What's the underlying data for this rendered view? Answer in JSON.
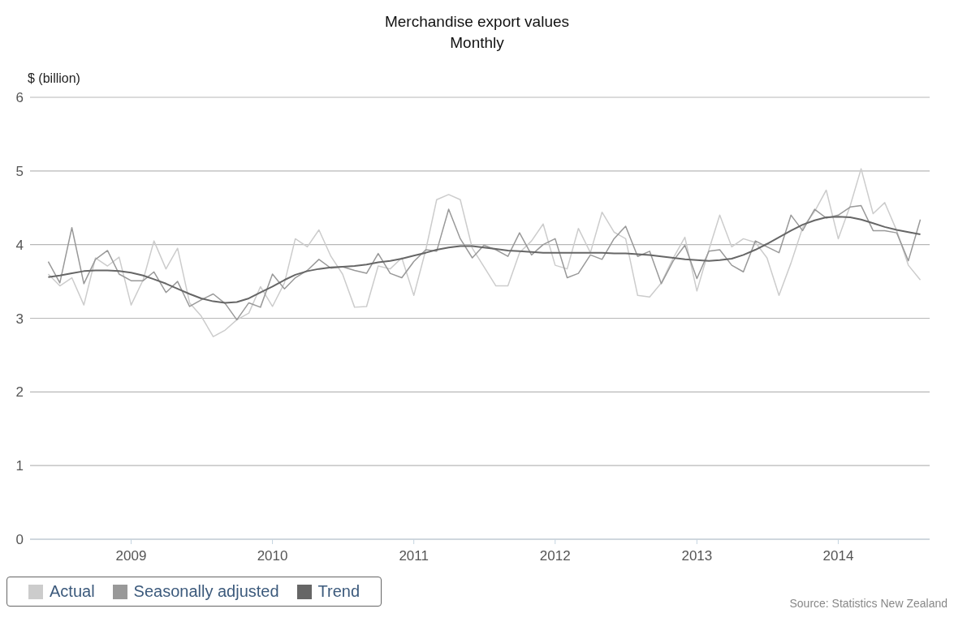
{
  "chart_data": {
    "type": "line",
    "title": "Merchandise export values",
    "subtitle": "Monthly",
    "ylabel": "$ (billion)",
    "x": [
      "2008-06",
      "2008-07",
      "2008-08",
      "2008-09",
      "2008-10",
      "2008-11",
      "2008-12",
      "2009-01",
      "2009-02",
      "2009-03",
      "2009-04",
      "2009-05",
      "2009-06",
      "2009-07",
      "2009-08",
      "2009-09",
      "2009-10",
      "2009-11",
      "2009-12",
      "2010-01",
      "2010-02",
      "2010-03",
      "2010-04",
      "2010-05",
      "2010-06",
      "2010-07",
      "2010-08",
      "2010-09",
      "2010-10",
      "2010-11",
      "2010-12",
      "2011-01",
      "2011-02",
      "2011-03",
      "2011-04",
      "2011-05",
      "2011-06",
      "2011-07",
      "2011-08",
      "2011-09",
      "2011-10",
      "2011-11",
      "2011-12",
      "2012-01",
      "2012-02",
      "2012-03",
      "2012-04",
      "2012-05",
      "2012-06",
      "2012-07",
      "2012-08",
      "2012-09",
      "2012-10",
      "2012-11",
      "2012-12",
      "2013-01",
      "2013-02",
      "2013-03",
      "2013-04",
      "2013-05",
      "2013-06",
      "2013-07",
      "2013-08",
      "2013-09",
      "2013-10",
      "2013-11",
      "2013-12",
      "2014-01",
      "2014-02",
      "2014-03",
      "2014-04",
      "2014-05",
      "2014-06",
      "2014-07",
      "2014-08"
    ],
    "series": [
      {
        "name": "Actual",
        "color": "#cccccc",
        "values": [
          3.6,
          3.44,
          3.55,
          3.18,
          3.82,
          3.71,
          3.83,
          3.18,
          3.52,
          4.05,
          3.67,
          3.95,
          3.21,
          3.03,
          2.75,
          2.84,
          2.98,
          3.07,
          3.43,
          3.16,
          3.48,
          4.08,
          3.97,
          4.2,
          3.84,
          3.6,
          3.15,
          3.16,
          3.71,
          3.67,
          3.82,
          3.31,
          3.93,
          4.61,
          4.68,
          4.61,
          3.95,
          3.7,
          3.44,
          3.44,
          3.89,
          4.05,
          4.28,
          3.72,
          3.67,
          4.22,
          3.89,
          4.44,
          4.17,
          4.08,
          3.31,
          3.29,
          3.48,
          3.82,
          4.1,
          3.37,
          3.93,
          4.4,
          3.97,
          4.08,
          4.03,
          3.82,
          3.31,
          3.75,
          4.23,
          4.45,
          4.74,
          4.08,
          4.53,
          5.03,
          4.42,
          4.57,
          4.19,
          3.72,
          3.52
        ]
      },
      {
        "name": "Seasonally adjusted",
        "color": "#999999",
        "values": [
          3.77,
          3.48,
          4.23,
          3.47,
          3.8,
          3.92,
          3.6,
          3.51,
          3.51,
          3.63,
          3.35,
          3.5,
          3.16,
          3.25,
          3.33,
          3.2,
          2.98,
          3.21,
          3.15,
          3.6,
          3.4,
          3.55,
          3.65,
          3.8,
          3.68,
          3.7,
          3.65,
          3.61,
          3.88,
          3.61,
          3.55,
          3.77,
          3.93,
          3.91,
          4.48,
          4.08,
          3.82,
          3.99,
          3.93,
          3.84,
          4.16,
          3.86,
          4.0,
          4.08,
          3.55,
          3.61,
          3.86,
          3.8,
          4.08,
          4.25,
          3.84,
          3.91,
          3.47,
          3.78,
          3.99,
          3.54,
          3.91,
          3.93,
          3.72,
          3.63,
          4.05,
          3.97,
          3.89,
          4.4,
          4.19,
          4.48,
          4.36,
          4.4,
          4.51,
          4.53,
          4.19,
          4.19,
          4.16,
          3.78,
          4.34
        ]
      },
      {
        "name": "Trend",
        "color": "#666666",
        "values": [
          3.56,
          3.58,
          3.61,
          3.64,
          3.65,
          3.65,
          3.64,
          3.62,
          3.58,
          3.53,
          3.47,
          3.4,
          3.33,
          3.27,
          3.23,
          3.21,
          3.22,
          3.27,
          3.35,
          3.43,
          3.52,
          3.59,
          3.64,
          3.67,
          3.69,
          3.7,
          3.71,
          3.73,
          3.76,
          3.78,
          3.81,
          3.85,
          3.89,
          3.93,
          3.96,
          3.98,
          3.98,
          3.96,
          3.94,
          3.92,
          3.91,
          3.9,
          3.89,
          3.89,
          3.89,
          3.89,
          3.89,
          3.89,
          3.88,
          3.88,
          3.87,
          3.86,
          3.84,
          3.82,
          3.8,
          3.79,
          3.78,
          3.79,
          3.81,
          3.86,
          3.93,
          4.01,
          4.1,
          4.19,
          4.27,
          4.33,
          4.37,
          4.38,
          4.37,
          4.34,
          4.29,
          4.24,
          4.2,
          4.17,
          4.14
        ]
      }
    ],
    "xlim": [
      "2008-04-15",
      "2014-08-25"
    ],
    "xticks": [
      "2009",
      "2010",
      "2011",
      "2012",
      "2013",
      "2014"
    ],
    "ylim": [
      0,
      6
    ],
    "yticks": [
      0,
      1,
      2,
      3,
      4,
      5,
      6
    ],
    "grid": "y",
    "legend": "bottom",
    "annotations": [
      "Source: Statistics New Zealand"
    ]
  }
}
